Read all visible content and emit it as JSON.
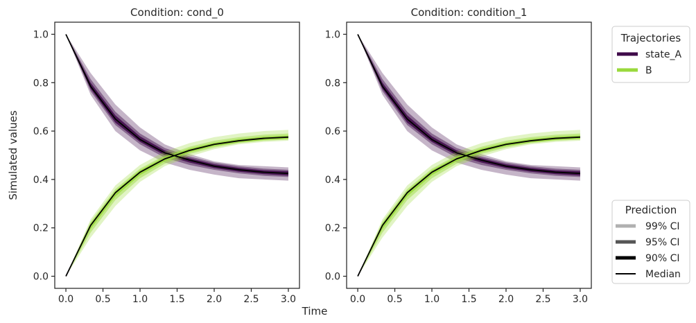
{
  "chart_data": {
    "type": "line",
    "ylabel": "Simulated values",
    "xlabel": "Time",
    "xlim": [
      -0.15,
      3.15
    ],
    "ylim": [
      -0.05,
      1.05
    ],
    "xticks": [
      "0.0",
      "0.5",
      "1.0",
      "1.5",
      "2.0",
      "2.5",
      "3.0"
    ],
    "yticks": [
      "0.0",
      "0.2",
      "0.4",
      "0.6",
      "0.8",
      "1.0"
    ],
    "grid": false,
    "panels": [
      {
        "title": "Condition: cond_0",
        "x": [
          0,
          0.333,
          0.667,
          1.0,
          1.333,
          1.667,
          2.0,
          2.333,
          2.667,
          3.0
        ],
        "series": [
          {
            "name": "state_A",
            "color": "#3f0a4a",
            "median": [
              1.0,
              0.785,
              0.65,
              0.565,
              0.51,
              0.48,
              0.455,
              0.44,
              0.43,
              0.425
            ],
            "ci99": {
              "lo": [
                1.0,
                0.75,
                0.6,
                0.52,
                0.47,
                0.44,
                0.42,
                0.405,
                0.4,
                0.395
              ],
              "hi": [
                1.0,
                0.84,
                0.71,
                0.615,
                0.545,
                0.505,
                0.475,
                0.46,
                0.455,
                0.45
              ]
            },
            "ci95": {
              "lo": [
                1.0,
                0.765,
                0.625,
                0.545,
                0.49,
                0.46,
                0.44,
                0.425,
                0.415,
                0.41
              ],
              "hi": [
                1.0,
                0.815,
                0.68,
                0.59,
                0.53,
                0.495,
                0.47,
                0.455,
                0.445,
                0.44
              ]
            },
            "ci90": {
              "lo": [
                1.0,
                0.775,
                0.635,
                0.555,
                0.5,
                0.47,
                0.447,
                0.432,
                0.422,
                0.416
              ],
              "hi": [
                1.0,
                0.8,
                0.665,
                0.578,
                0.52,
                0.488,
                0.463,
                0.448,
                0.438,
                0.434
              ]
            }
          },
          {
            "name": "B",
            "color": "#9ad93c",
            "median": [
              0.0,
              0.21,
              0.345,
              0.43,
              0.485,
              0.52,
              0.545,
              0.56,
              0.57,
              0.575
            ],
            "ci99": {
              "lo": [
                0.0,
                0.16,
                0.29,
                0.39,
                0.455,
                0.495,
                0.525,
                0.545,
                0.555,
                0.56
              ],
              "hi": [
                0.0,
                0.235,
                0.375,
                0.46,
                0.515,
                0.55,
                0.575,
                0.59,
                0.6,
                0.605
              ]
            },
            "ci95": {
              "lo": [
                0.0,
                0.18,
                0.315,
                0.405,
                0.465,
                0.505,
                0.532,
                0.55,
                0.56,
                0.565
              ],
              "hi": [
                0.0,
                0.225,
                0.36,
                0.445,
                0.5,
                0.535,
                0.56,
                0.575,
                0.585,
                0.59
              ]
            },
            "ci90": {
              "lo": [
                0.0,
                0.195,
                0.33,
                0.418,
                0.475,
                0.512,
                0.538,
                0.553,
                0.563,
                0.568
              ],
              "hi": [
                0.0,
                0.218,
                0.352,
                0.438,
                0.493,
                0.528,
                0.552,
                0.567,
                0.577,
                0.582
              ]
            }
          }
        ]
      },
      {
        "title": "Condition: condition_1",
        "x": [
          0,
          0.333,
          0.667,
          1.0,
          1.333,
          1.667,
          2.0,
          2.333,
          2.667,
          3.0
        ],
        "series": [
          {
            "name": "state_A",
            "color": "#3f0a4a",
            "median": [
              1.0,
              0.785,
              0.65,
              0.565,
              0.51,
              0.48,
              0.455,
              0.44,
              0.43,
              0.425
            ],
            "ci99": {
              "lo": [
                1.0,
                0.75,
                0.6,
                0.52,
                0.47,
                0.44,
                0.42,
                0.405,
                0.4,
                0.395
              ],
              "hi": [
                1.0,
                0.84,
                0.71,
                0.615,
                0.545,
                0.505,
                0.475,
                0.46,
                0.455,
                0.45
              ]
            },
            "ci95": {
              "lo": [
                1.0,
                0.765,
                0.625,
                0.545,
                0.49,
                0.46,
                0.44,
                0.425,
                0.415,
                0.41
              ],
              "hi": [
                1.0,
                0.815,
                0.68,
                0.59,
                0.53,
                0.495,
                0.47,
                0.455,
                0.445,
                0.44
              ]
            },
            "ci90": {
              "lo": [
                1.0,
                0.775,
                0.635,
                0.555,
                0.5,
                0.47,
                0.447,
                0.432,
                0.422,
                0.416
              ],
              "hi": [
                1.0,
                0.8,
                0.665,
                0.578,
                0.52,
                0.488,
                0.463,
                0.448,
                0.438,
                0.434
              ]
            }
          },
          {
            "name": "B",
            "color": "#9ad93c",
            "median": [
              0.0,
              0.21,
              0.345,
              0.43,
              0.485,
              0.52,
              0.545,
              0.56,
              0.57,
              0.575
            ],
            "ci99": {
              "lo": [
                0.0,
                0.16,
                0.29,
                0.39,
                0.455,
                0.495,
                0.525,
                0.545,
                0.555,
                0.56
              ],
              "hi": [
                0.0,
                0.235,
                0.375,
                0.46,
                0.515,
                0.55,
                0.575,
                0.59,
                0.6,
                0.605
              ]
            },
            "ci95": {
              "lo": [
                0.0,
                0.18,
                0.315,
                0.405,
                0.465,
                0.505,
                0.532,
                0.55,
                0.56,
                0.565
              ],
              "hi": [
                0.0,
                0.225,
                0.36,
                0.445,
                0.5,
                0.535,
                0.56,
                0.575,
                0.585,
                0.59
              ]
            },
            "ci90": {
              "lo": [
                0.0,
                0.195,
                0.33,
                0.418,
                0.475,
                0.512,
                0.538,
                0.553,
                0.563,
                0.568
              ],
              "hi": [
                0.0,
                0.218,
                0.352,
                0.438,
                0.493,
                0.528,
                0.552,
                0.567,
                0.577,
                0.582
              ]
            }
          }
        ]
      }
    ],
    "legends": {
      "trajectories": {
        "title": "Trajectories",
        "placement": "upper right, outside",
        "items": [
          {
            "label": "state_A",
            "color": "#3f0a4a"
          },
          {
            "label": "B",
            "color": "#9ad93c"
          }
        ]
      },
      "prediction": {
        "title": "Prediction",
        "placement": "lower right, outside",
        "items": [
          {
            "label": "99% CI",
            "color": "#b0b0b0"
          },
          {
            "label": "95% CI",
            "color": "#555555"
          },
          {
            "label": "90% CI",
            "color": "#000000"
          },
          {
            "label": "Median",
            "color": "#000000"
          }
        ]
      }
    },
    "band_opacity": {
      "ci99": 0.3,
      "ci95": 0.45,
      "ci90": 0.85
    },
    "median_color": "#000000"
  }
}
